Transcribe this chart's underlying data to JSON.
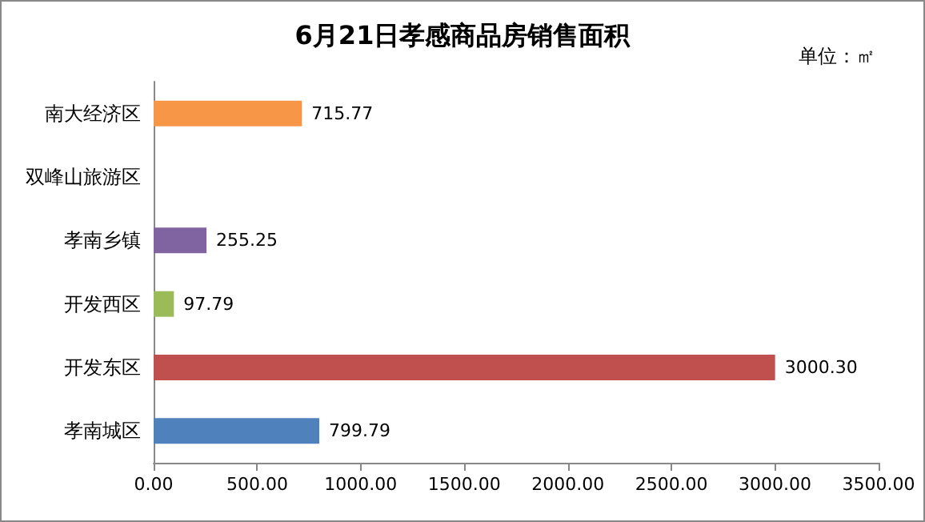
{
  "chart_data": {
    "type": "bar",
    "orientation": "horizontal",
    "title": "6月21日孝感商品房销售面积",
    "annotations": [
      "单位：㎡"
    ],
    "categories": [
      "南大经济区",
      "双峰山旅游区",
      "孝南乡镇",
      "开发西区",
      "开发东区",
      "孝南城区"
    ],
    "values": [
      715.77,
      null,
      255.25,
      97.79,
      3000.3,
      799.79
    ],
    "value_labels": [
      "715.77",
      null,
      "255.25",
      "97.79",
      "3000.30",
      "799.79"
    ],
    "colors": [
      "#f79646",
      "#4bacc6",
      "#8064a2",
      "#9bbb59",
      "#c0504d",
      "#4f81bd"
    ],
    "xlim": [
      0,
      3500
    ],
    "xticks": [
      {
        "value": 0,
        "label": "0.00"
      },
      {
        "value": 500,
        "label": "500.00"
      },
      {
        "value": 1000,
        "label": "1000.00"
      },
      {
        "value": 1500,
        "label": "1500.00"
      },
      {
        "value": 2000,
        "label": "2000.00"
      },
      {
        "value": 2500,
        "label": "2500.00"
      },
      {
        "value": 3000,
        "label": "3000.00"
      },
      {
        "value": 3500,
        "label": "3500.00"
      }
    ],
    "grid": false
  }
}
